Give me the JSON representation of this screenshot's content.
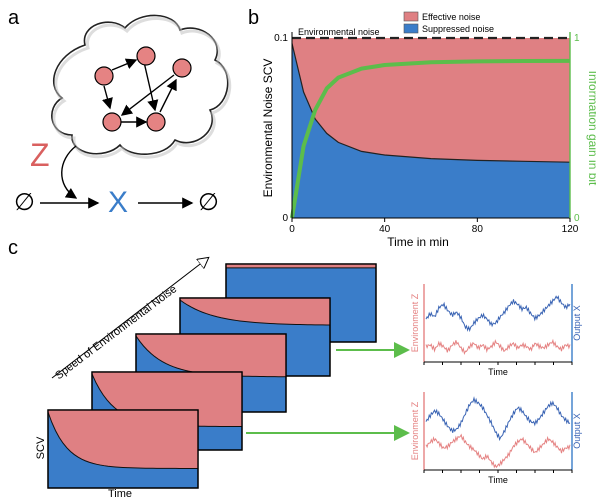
{
  "panels": {
    "a": "a",
    "b": "b",
    "c": "c"
  },
  "panel_a": {
    "input_symbol": "Z",
    "output_symbol": "X",
    "null_left": "∅",
    "null_right": "∅",
    "colors": {
      "z": "#d9605f",
      "x": "#3a7dc9",
      "node": "#e58383"
    }
  },
  "chart_data": [
    {
      "type": "area",
      "panel": "b",
      "x": [
        0,
        5,
        10,
        15,
        20,
        30,
        40,
        60,
        80,
        100,
        120
      ],
      "x_ticks": [
        "0",
        "40",
        "80",
        "120"
      ],
      "xlim": [
        0,
        120
      ],
      "xlabel": "Time in min",
      "ylabel": "Environmental Noise SCV",
      "ylim": [
        0,
        0.1
      ],
      "y_ticks": [
        "0",
        "0.1"
      ],
      "y2label": "Information gain in bit",
      "y2lim": [
        0,
        1
      ],
      "y2_ticks": [
        "0",
        "1"
      ],
      "annotation": "Environmental noise",
      "environmental_noise_level": 0.1,
      "legend": [
        "Effective noise",
        "Suppressed noise"
      ],
      "legend_position": "top-right",
      "series": [
        {
          "name": "Suppressed noise",
          "values": [
            0.097,
            0.07,
            0.055,
            0.047,
            0.042,
            0.037,
            0.035,
            0.033,
            0.032,
            0.0315,
            0.031
          ]
        },
        {
          "name": "Effective noise",
          "values": [
            0.003,
            0.03,
            0.045,
            0.053,
            0.058,
            0.063,
            0.065,
            0.067,
            0.068,
            0.0685,
            0.069
          ]
        },
        {
          "name": "Information gain in bit",
          "axis": "right",
          "values": [
            0,
            0.4,
            0.6,
            0.72,
            0.78,
            0.83,
            0.85,
            0.865,
            0.87,
            0.872,
            0.873
          ]
        }
      ],
      "colors": {
        "effective": "#df8083",
        "suppressed": "#3a7dc9",
        "info": "#5cbd4b"
      }
    },
    {
      "type": "line",
      "panel": "c-top",
      "xlabel": "Time",
      "ylabel_left": "Environment Z",
      "ylabel_right": "Output X",
      "series": [
        {
          "name": "Output X",
          "values": [
            0.55,
            0.62,
            0.58,
            0.7,
            0.74,
            0.66,
            0.6,
            0.64,
            0.57,
            0.45,
            0.42,
            0.5,
            0.56,
            0.6,
            0.55,
            0.48,
            0.5,
            0.58,
            0.64,
            0.72,
            0.78,
            0.74,
            0.68,
            0.7,
            0.62,
            0.56,
            0.6,
            0.66,
            0.72,
            0.78,
            0.84,
            0.76,
            0.7,
            0.74
          ]
        },
        {
          "name": "Environment Z",
          "values": [
            0.2,
            0.22,
            0.16,
            0.24,
            0.2,
            0.14,
            0.22,
            0.26,
            0.18,
            0.12,
            0.2,
            0.24,
            0.18,
            0.22,
            0.16,
            0.2,
            0.26,
            0.2,
            0.14,
            0.2,
            0.24,
            0.18,
            0.22,
            0.2,
            0.16,
            0.24,
            0.2,
            0.18,
            0.22,
            0.26,
            0.2,
            0.16,
            0.22,
            0.2
          ]
        }
      ]
    },
    {
      "type": "line",
      "panel": "c-bottom",
      "xlabel": "Time",
      "ylabel_left": "Environment Z",
      "ylabel_right": "Output X",
      "series": [
        {
          "name": "Output X",
          "values": [
            0.62,
            0.7,
            0.76,
            0.72,
            0.64,
            0.56,
            0.5,
            0.52,
            0.6,
            0.72,
            0.84,
            0.9,
            0.86,
            0.8,
            0.7,
            0.6,
            0.48,
            0.4,
            0.5,
            0.62,
            0.72,
            0.8,
            0.76,
            0.68,
            0.62,
            0.6,
            0.66,
            0.74,
            0.82,
            0.86,
            0.8,
            0.7,
            0.64,
            0.6
          ]
        },
        {
          "name": "Environment Z",
          "values": [
            0.3,
            0.36,
            0.4,
            0.34,
            0.28,
            0.3,
            0.36,
            0.4,
            0.44,
            0.36,
            0.3,
            0.26,
            0.2,
            0.14,
            0.18,
            0.1,
            0.04,
            0.08,
            0.14,
            0.2,
            0.3,
            0.36,
            0.4,
            0.34,
            0.28,
            0.22,
            0.28,
            0.34,
            0.4,
            0.36,
            0.3,
            0.24,
            0.28,
            0.3
          ]
        }
      ]
    }
  ],
  "panel_c": {
    "arrow_label": "Speed of Environmental Noise",
    "ylabel": "SCV",
    "xlabel": "Time",
    "stack_pink_fraction": [
      0.75,
      0.7,
      0.55,
      0.35,
      0.05
    ]
  }
}
